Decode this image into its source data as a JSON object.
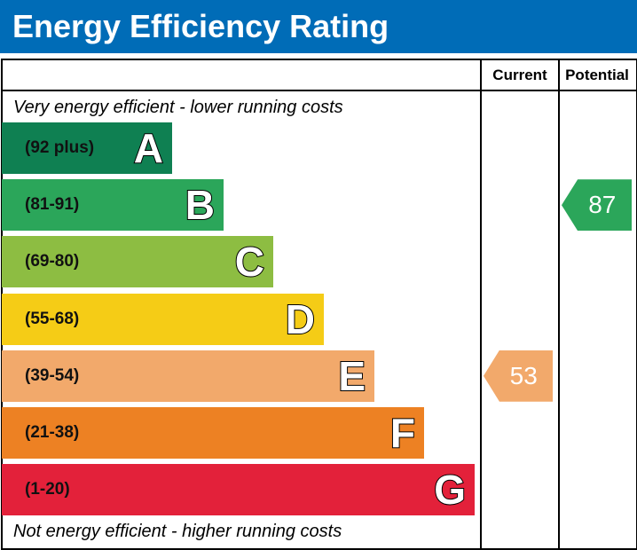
{
  "header": {
    "title": "Energy Efficiency Rating"
  },
  "columns": {
    "current": "Current",
    "potential": "Potential"
  },
  "captions": {
    "top": "Very energy efficient - lower running costs",
    "bottom": "Not energy efficient - higher running costs"
  },
  "chart_data": {
    "type": "bar",
    "title": "Energy Efficiency Rating",
    "categories": [
      "A",
      "B",
      "C",
      "D",
      "E",
      "F",
      "G"
    ],
    "ranges": [
      "(92 plus)",
      "(81-91)",
      "(69-80)",
      "(55-68)",
      "(39-54)",
      "(21-38)",
      "(1-20)"
    ],
    "colors": [
      "#0f8052",
      "#2ba65a",
      "#8dbd42",
      "#f5cc16",
      "#f2a96b",
      "#ed8123",
      "#e3213a"
    ],
    "current": {
      "value": 53,
      "band": "E",
      "color": "#f2a96b"
    },
    "potential": {
      "value": 87,
      "band": "B",
      "color": "#2ba65a"
    }
  }
}
